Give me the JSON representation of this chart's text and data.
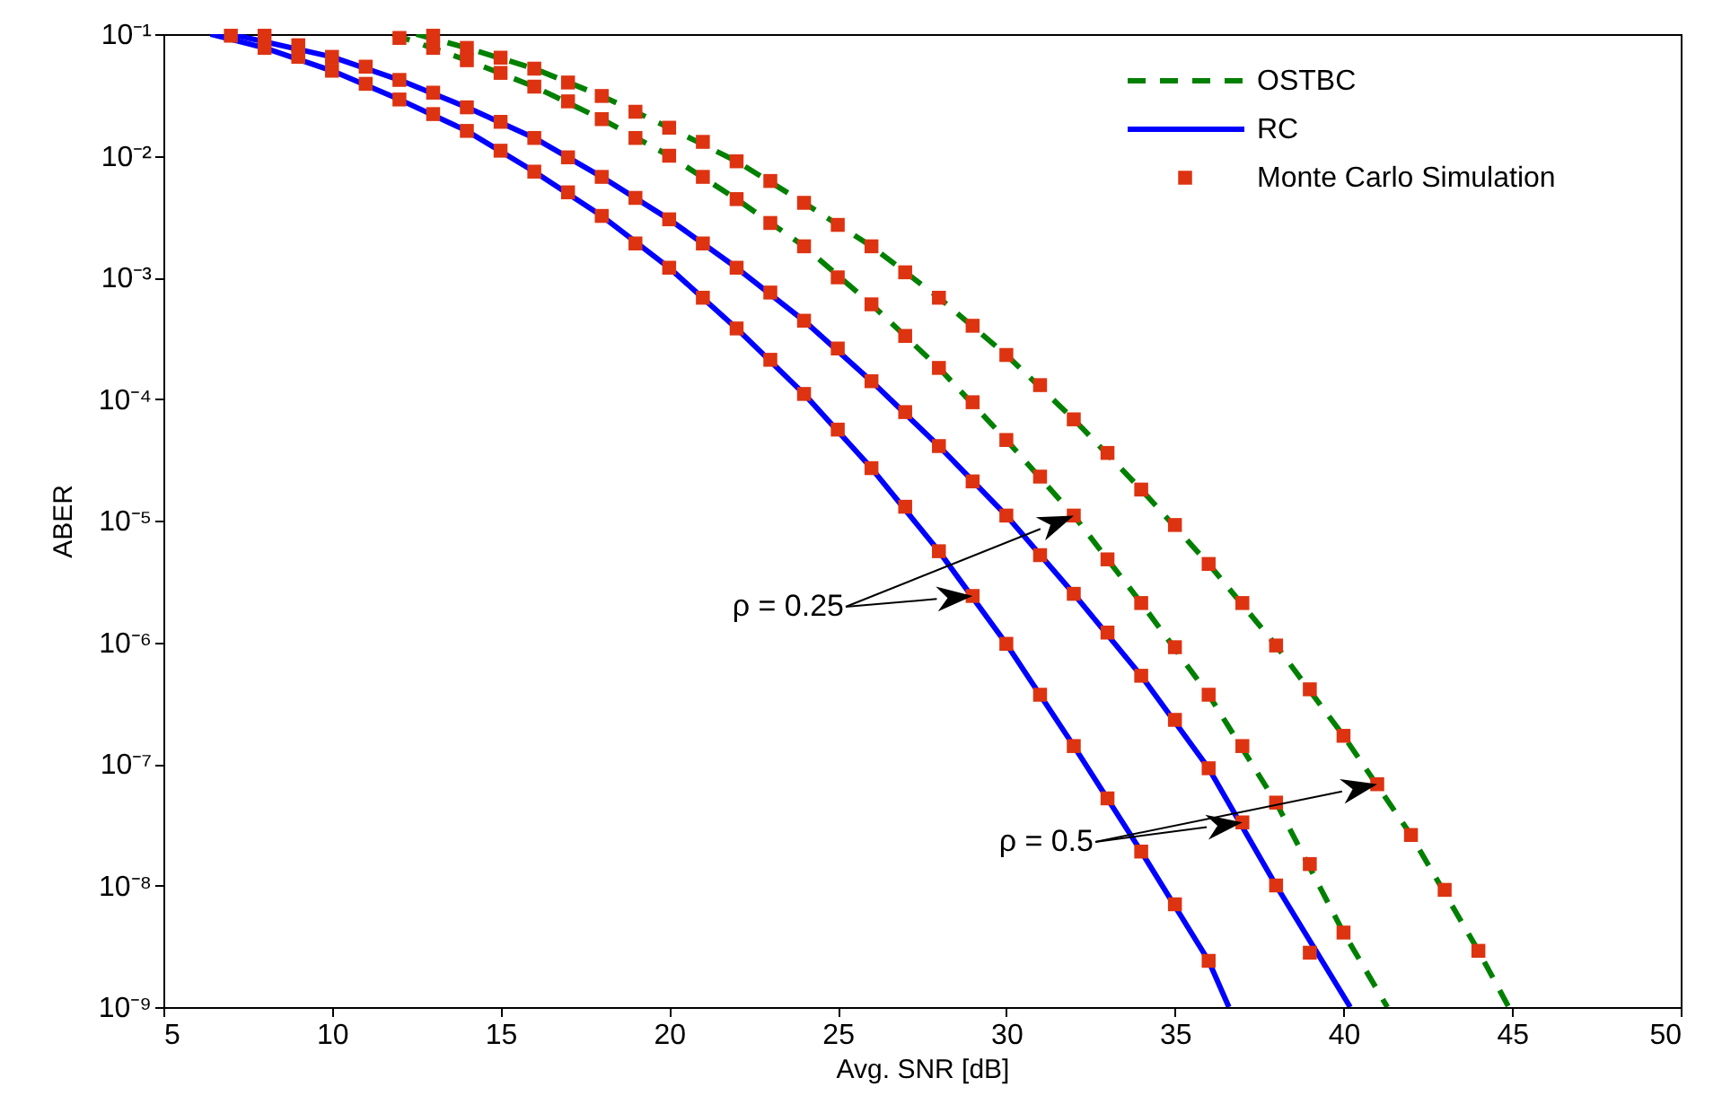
{
  "chart_data": {
    "type": "line",
    "xlabel": "Avg. SNR [dB]",
    "ylabel": "ABER",
    "log": "y",
    "xlim": [
      5,
      50
    ],
    "xticks": [
      5,
      10,
      15,
      20,
      25,
      30,
      35,
      40,
      45,
      50
    ],
    "ylim": [
      1e-09,
      0.1
    ],
    "yticks": [
      {
        "value": 0.1,
        "label": "10⁻¹"
      },
      {
        "value": 0.01,
        "label": "10⁻²"
      },
      {
        "value": 0.001,
        "label": "10⁻³"
      },
      {
        "value": 0.0001,
        "label": "10⁻⁴"
      },
      {
        "value": 1e-05,
        "label": "10⁻⁵"
      },
      {
        "value": 1e-06,
        "label": "10⁻⁶"
      },
      {
        "value": 1e-07,
        "label": "10⁻⁷"
      },
      {
        "value": 1e-08,
        "label": "10⁻⁸"
      },
      {
        "value": 1e-09,
        "label": "10⁻⁹"
      }
    ],
    "legend": "top right",
    "series": [
      {
        "name": "OSTBC",
        "line_style": "dashed",
        "color": "#008000",
        "x": [
          11.8,
          14,
          16,
          18,
          20,
          22,
          24,
          26,
          28,
          30,
          32,
          34,
          36,
          38,
          40,
          41.3
        ],
        "values": [
          0.1,
          0.061,
          0.037,
          0.02,
          0.01,
          0.0044,
          0.0018,
          0.0006,
          0.00018,
          4.6e-05,
          1.1e-05,
          2.1e-06,
          3.7e-07,
          4.8e-08,
          4.1e-09,
          1e-09
        ]
      },
      {
        "line_style": "dashed",
        "color": "#008000",
        "x": [
          12.5,
          14,
          16,
          18,
          20,
          22,
          24,
          26,
          28,
          30,
          32,
          34,
          36,
          38,
          40,
          42,
          44,
          44.9
        ],
        "values": [
          0.1,
          0.077,
          0.052,
          0.031,
          0.017,
          0.009,
          0.0041,
          0.0018,
          0.00068,
          0.00023,
          6.8e-05,
          1.8e-05,
          4.4e-06,
          9.4e-07,
          1.7e-07,
          2.6e-08,
          2.9e-09,
          1e-09
        ]
      },
      {
        "name": "RC",
        "line_style": "solid",
        "color": "#0000ff",
        "x": [
          6.4,
          8,
          10,
          12,
          14,
          16,
          18,
          20,
          22,
          24,
          26,
          28,
          30,
          32,
          34,
          36,
          36.6
        ],
        "values": [
          0.1,
          0.077,
          0.05,
          0.029,
          0.016,
          0.0074,
          0.0032,
          0.0012,
          0.00038,
          0.00011,
          2.7e-05,
          5.6e-06,
          9.7e-07,
          1.4e-07,
          1.9e-08,
          2.4e-09,
          1e-09
        ]
      },
      {
        "line_style": "solid",
        "color": "#0000ff",
        "x": [
          7,
          10,
          12,
          14,
          16,
          18,
          20,
          22,
          24,
          26,
          28,
          30,
          32,
          34,
          36,
          38,
          40.2
        ],
        "values": [
          0.1,
          0.065,
          0.042,
          0.025,
          0.014,
          0.0067,
          0.003,
          0.0012,
          0.00044,
          0.00014,
          4.1e-05,
          1.1e-05,
          2.5e-06,
          5.3e-07,
          9.2e-08,
          1e-08,
          1e-09
        ]
      },
      {
        "name": "Monte Carlo Simulation",
        "type": "scatter",
        "marker": "square",
        "color": "#dd3311",
        "x": [
          7,
          8,
          9,
          10,
          11,
          12,
          13,
          14,
          15,
          16,
          17,
          18,
          19,
          20,
          21,
          22,
          23,
          24,
          25,
          26,
          27,
          28,
          29,
          30,
          31,
          32,
          33,
          34,
          35,
          36
        ],
        "values": [
          0.097,
          0.077,
          0.065,
          0.05,
          0.039,
          0.029,
          0.022,
          0.016,
          0.011,
          0.0074,
          0.005,
          0.0032,
          0.0019,
          0.0012,
          0.00068,
          0.00038,
          0.00021,
          0.00011,
          5.6e-05,
          2.7e-05,
          1.3e-05,
          5.6e-06,
          2.4e-06,
          9.7e-07,
          3.7e-07,
          1.4e-07,
          5.2e-08,
          1.9e-08,
          7e-09,
          2.4e-09
        ]
      },
      {
        "type": "scatter",
        "marker": "square",
        "color": "#dd3311",
        "x": [
          8,
          9,
          10,
          11,
          12,
          13,
          14,
          15,
          16,
          17,
          18,
          19,
          20,
          21,
          22,
          23,
          24,
          25,
          26,
          27,
          28,
          29,
          30,
          31,
          32,
          33,
          34,
          35,
          36,
          37,
          38,
          39
        ],
        "values": [
          0.097,
          0.081,
          0.065,
          0.054,
          0.042,
          0.033,
          0.025,
          0.019,
          0.014,
          0.0097,
          0.0067,
          0.0045,
          0.003,
          0.0019,
          0.0012,
          0.00075,
          0.00044,
          0.00026,
          0.00014,
          7.8e-05,
          4.1e-05,
          2.1e-05,
          1.1e-05,
          5.2e-06,
          2.5e-06,
          1.2e-06,
          5.3e-07,
          2.3e-07,
          9.2e-08,
          3.3e-08,
          1e-08,
          2.8e-09
        ]
      },
      {
        "type": "scatter",
        "marker": "square",
        "color": "#dd3311",
        "x": [
          12,
          13,
          14,
          15,
          16,
          17,
          18,
          19,
          20,
          21,
          22,
          23,
          24,
          25,
          26,
          27,
          28,
          29,
          30,
          31,
          32,
          33,
          34,
          35,
          36,
          37,
          38,
          39,
          40
        ],
        "values": [
          0.093,
          0.077,
          0.061,
          0.048,
          0.037,
          0.028,
          0.02,
          0.014,
          0.01,
          0.0067,
          0.0044,
          0.0028,
          0.0018,
          0.001,
          0.0006,
          0.00033,
          0.00018,
          9.4e-05,
          4.6e-05,
          2.3e-05,
          1.1e-05,
          4.8e-06,
          2.1e-06,
          9.1e-07,
          3.7e-07,
          1.4e-07,
          4.8e-08,
          1.5e-08,
          4.1e-09
        ]
      },
      {
        "type": "scatter",
        "marker": "square",
        "color": "#dd3311",
        "x": [
          13,
          14,
          15,
          16,
          17,
          18,
          19,
          20,
          21,
          22,
          23,
          24,
          25,
          26,
          27,
          28,
          29,
          30,
          31,
          32,
          33,
          34,
          35,
          36,
          37,
          38,
          39,
          40,
          41,
          42,
          43,
          44
        ],
        "values": [
          0.097,
          0.077,
          0.064,
          0.052,
          0.04,
          0.031,
          0.023,
          0.017,
          0.013,
          0.009,
          0.0062,
          0.0041,
          0.0027,
          0.0018,
          0.0011,
          0.00068,
          0.0004,
          0.00023,
          0.00013,
          6.8e-05,
          3.6e-05,
          1.8e-05,
          9.2e-06,
          4.4e-06,
          2.1e-06,
          9.4e-07,
          4.1e-07,
          1.7e-07,
          6.8e-08,
          2.6e-08,
          9.2e-09,
          2.9e-09
        ]
      }
    ],
    "annotations": [
      "ρ = 0.25",
      "ρ = 0.5"
    ]
  }
}
